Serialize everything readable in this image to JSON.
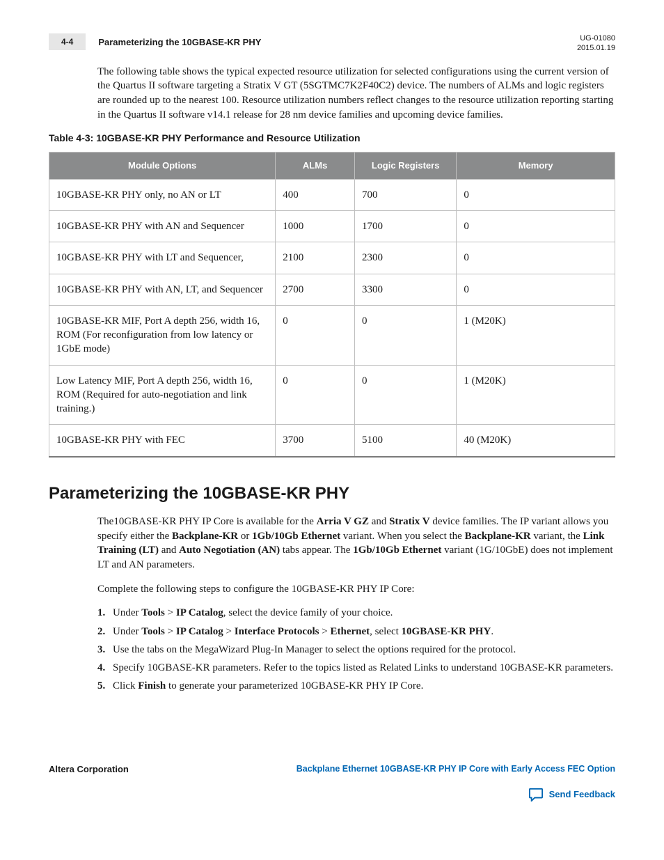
{
  "header": {
    "page_num": "4-4",
    "title": "Parameterizing the 10GBASE-KR PHY",
    "doc_id": "UG-01080",
    "date": "2015.01.19"
  },
  "intro_para": "The following table shows the typical expected resource utilization for selected configurations using the current version of the Quartus II software targeting a Stratix V GT (5SGTMC7K2F40C2) device. The numbers of ALMs and logic registers are rounded up to the nearest 100. Resource utilization numbers reflect changes to the resource utilization reporting starting in the Quartus II software v14.1 release for 28 nm device families and upcoming device families.",
  "table": {
    "caption": "Table 4-3: 10GBASE-KR PHY Performance and Resource Utilization",
    "columns": [
      "Module Options",
      "ALMs",
      "Logic Registers",
      "Memory"
    ],
    "header_bg": "#8a8b8c",
    "rows": [
      [
        "10GBASE-KR PHY only, no AN or LT",
        "400",
        "700",
        "0"
      ],
      [
        "10GBASE-KR PHY with AN and Sequencer",
        "1000",
        "1700",
        "0"
      ],
      [
        "10GBASE-KR PHY with LT and Sequencer,",
        "2100",
        "2300",
        "0"
      ],
      [
        "10GBASE-KR PHY with AN, LT, and Sequencer",
        "2700",
        "3300",
        "0"
      ],
      [
        "10GBASE-KR MIF, Port A depth 256, width 16, ROM (For reconfiguration from low latency or 1GbE mode)",
        "0",
        "0",
        "1 (M20K)"
      ],
      [
        "Low Latency MIF, Port A depth 256, width 16, ROM (Required for auto-negotiation and link training.)",
        "0",
        "0",
        "1 (M20K)"
      ],
      [
        "10GBASE-KR PHY with FEC",
        "3700",
        "5100",
        "40 (M20K)"
      ]
    ]
  },
  "section": {
    "title": "Parameterizing the 10GBASE-KR PHY",
    "p1_parts": [
      "The10GBASE-KR PHY IP Core is available for the ",
      "Arria V GZ",
      " and ",
      "Stratix V",
      " device families. The IP variant allows you specify either the ",
      "Backplane-KR",
      " or ",
      "1Gb/10Gb Ethernet",
      " variant. When you select the ",
      "Backplane-KR",
      " variant, the ",
      "Link Training (LT)",
      " and ",
      "Auto Negotiation (AN)",
      " tabs appear. The ",
      "1Gb/10Gb Ethernet",
      " variant (1G/10GbE) does not implement LT and AN parameters."
    ],
    "p2": "Complete the following steps to configure the 10GBASE-KR PHY IP Core:",
    "steps": {
      "s1": {
        "a": "Under ",
        "b": "Tools",
        "c": " > ",
        "d": "IP Catalog",
        "e": ", select the device family of your choice."
      },
      "s2": {
        "a": "Under ",
        "b": "Tools",
        "c": " > ",
        "d": "IP Catalog",
        "e": " > ",
        "f": "Interface Protocols",
        "g": " > ",
        "h": "Ethernet",
        "i": ", select ",
        "j": "10GBASE-KR PHY",
        "k": "."
      },
      "s3": "Use the tabs on the MegaWizard Plug-In Manager to select the options required for the protocol.",
      "s4": "Specify 10GBASE-KR parameters. Refer to the topics listed as Related Links to understand 10GBASE-KR parameters.",
      "s5": {
        "a": "Click ",
        "b": "Finish",
        "c": " to generate your parameterized 10GBASE-KR PHY IP Core."
      }
    }
  },
  "footer": {
    "left": "Altera Corporation",
    "right": "Backplane Ethernet 10GBASE-KR PHY IP Core with Early Access FEC Option",
    "feedback": "Send Feedback"
  }
}
